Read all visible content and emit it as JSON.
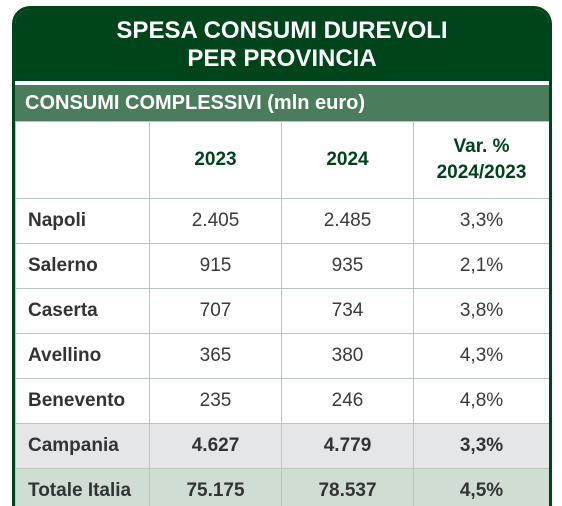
{
  "title_line1": "SPESA CONSUMI DUREVOLI",
  "title_line2": "PER PROVINCIA",
  "subtitle": "CONSUMI COMPLESSIVI (mln euro)",
  "headers": {
    "col2": "2023",
    "col3": "2024",
    "col4_line1": "Var. %",
    "col4_line2": "2024/2023"
  },
  "rows": [
    {
      "name": "Napoli",
      "y2023": "2.405",
      "y2024": "2.485",
      "var": "3,3%"
    },
    {
      "name": "Salerno",
      "y2023": "915",
      "y2024": "935",
      "var": "2,1%"
    },
    {
      "name": "Caserta",
      "y2023": "707",
      "y2024": "734",
      "var": "3,8%"
    },
    {
      "name": "Avellino",
      "y2023": "365",
      "y2024": "380",
      "var": "4,3%"
    },
    {
      "name": "Benevento",
      "y2023": "235",
      "y2024": "246",
      "var": "4,8%"
    },
    {
      "name": "Campania",
      "y2023": "4.627",
      "y2024": "4.779",
      "var": "3,3%"
    },
    {
      "name": "Totale Italia",
      "y2023": "75.175",
      "y2024": "78.537",
      "var": "4,5%"
    }
  ],
  "colors": {
    "dark_green": "#00441b",
    "mid_green": "#4b7d5c",
    "campania_bg": "#e5e6e8",
    "totale_bg": "#cfddd3"
  }
}
